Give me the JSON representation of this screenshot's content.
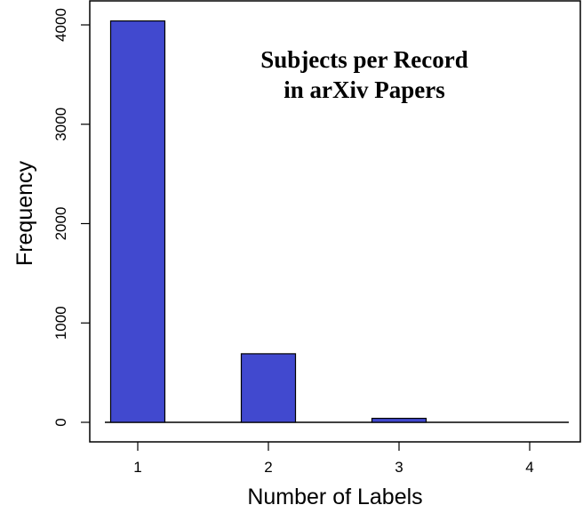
{
  "chart_data": {
    "type": "bar",
    "title_lines": [
      "Subjects  per  Record",
      "in  arXiv  Papers"
    ],
    "xlabel": "Number of Labels",
    "ylabel": "Frequency",
    "categories": [
      "1",
      "2",
      "3",
      "4"
    ],
    "values": [
      4040,
      690,
      40,
      0
    ],
    "y_ticks": [
      "0",
      "1000",
      "2000",
      "3000",
      "4000"
    ],
    "ylim": [
      0,
      4000
    ],
    "bar_color": "#4149CF",
    "grid": false,
    "legend": "none"
  }
}
